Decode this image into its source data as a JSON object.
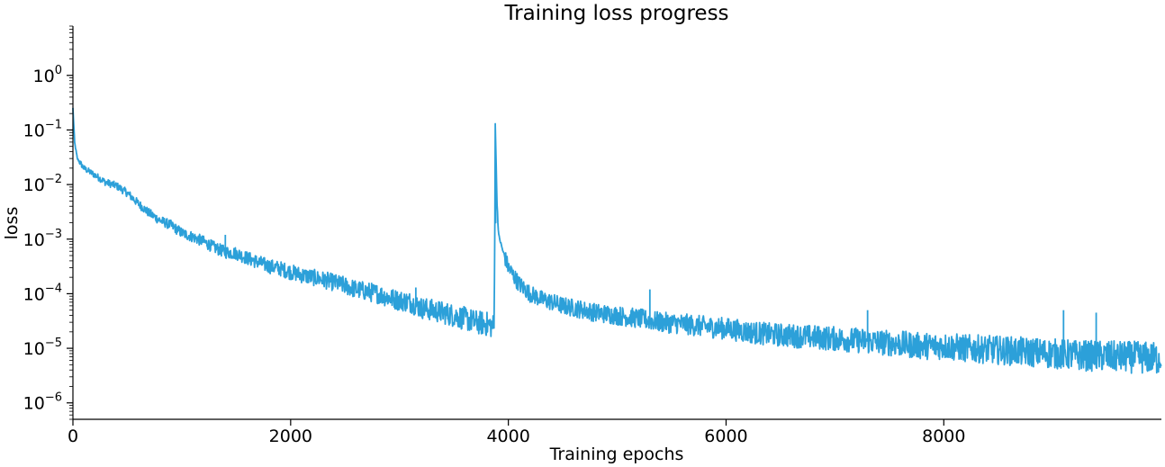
{
  "chart_data": {
    "type": "line",
    "title": "Training loss progress",
    "xlabel": "Training epochs",
    "ylabel": "loss",
    "xlim": [
      0,
      9999
    ],
    "ylim": [
      5e-07,
      8
    ],
    "yscale": "log",
    "grid": false,
    "legend": "none",
    "x_ticks": [
      {
        "value": 0,
        "label": "0"
      },
      {
        "value": 2000,
        "label": "2000"
      },
      {
        "value": 4000,
        "label": "4000"
      },
      {
        "value": 6000,
        "label": "6000"
      },
      {
        "value": 8000,
        "label": "8000"
      }
    ],
    "y_ticks": [
      {
        "value": 1.0,
        "base": "10",
        "exp": "0"
      },
      {
        "value": 0.1,
        "base": "10",
        "exp": "−1"
      },
      {
        "value": 0.01,
        "base": "10",
        "exp": "−2"
      },
      {
        "value": 0.001,
        "base": "10",
        "exp": "−3"
      },
      {
        "value": 0.0001,
        "base": "10",
        "exp": "−4"
      },
      {
        "value": 1e-05,
        "base": "10",
        "exp": "−5"
      },
      {
        "value": 1e-06,
        "base": "10",
        "exp": "−6"
      }
    ],
    "series": [
      {
        "color": "#2ca0d9",
        "points": [
          [
            0,
            0.25
          ],
          [
            15,
            0.06
          ],
          [
            40,
            0.03
          ],
          [
            100,
            0.02
          ],
          [
            200,
            0.015
          ],
          [
            300,
            0.011
          ],
          [
            400,
            0.0095
          ],
          [
            500,
            0.007
          ],
          [
            600,
            0.0045
          ],
          [
            700,
            0.003
          ],
          [
            800,
            0.0022
          ],
          [
            900,
            0.0018
          ],
          [
            1000,
            0.0013
          ],
          [
            1100,
            0.0011
          ],
          [
            1200,
            0.0009
          ],
          [
            1300,
            0.0007
          ],
          [
            1400,
            0.00058
          ],
          [
            1500,
            0.00055
          ],
          [
            1600,
            0.00045
          ],
          [
            1700,
            0.00038
          ],
          [
            1800,
            0.00032
          ],
          [
            1900,
            0.00029
          ],
          [
            2000,
            0.00025
          ],
          [
            2100,
            0.00022
          ],
          [
            2200,
            0.0002
          ],
          [
            2300,
            0.00018
          ],
          [
            2400,
            0.00016
          ],
          [
            2500,
            0.00014
          ],
          [
            2600,
            0.00012
          ],
          [
            2700,
            0.00011
          ],
          [
            2800,
            0.0001
          ],
          [
            2900,
            8.5e-05
          ],
          [
            3000,
            7.5e-05
          ],
          [
            3100,
            7e-05
          ],
          [
            3200,
            5.5e-05
          ],
          [
            3300,
            5e-05
          ],
          [
            3400,
            4.5e-05
          ],
          [
            3500,
            4e-05
          ],
          [
            3600,
            3.5e-05
          ],
          [
            3700,
            3e-05
          ],
          [
            3800,
            2.8e-05
          ],
          [
            3870,
            2.5e-05
          ],
          [
            3880,
            0.13
          ],
          [
            3895,
            0.005
          ],
          [
            3910,
            0.0012
          ],
          [
            3950,
            0.0006
          ],
          [
            4000,
            0.0003
          ],
          [
            4100,
            0.00015
          ],
          [
            4200,
            0.0001
          ],
          [
            4300,
            8e-05
          ],
          [
            4400,
            7e-05
          ],
          [
            4500,
            6e-05
          ],
          [
            4600,
            5.5e-05
          ],
          [
            4700,
            5e-05
          ],
          [
            4800,
            4.5e-05
          ],
          [
            5000,
            4e-05
          ],
          [
            5200,
            3.5e-05
          ],
          [
            5400,
            3e-05
          ],
          [
            5600,
            2.8e-05
          ],
          [
            5800,
            2.5e-05
          ],
          [
            6000,
            2.3e-05
          ],
          [
            6200,
            2e-05
          ],
          [
            6400,
            1.8e-05
          ],
          [
            6600,
            1.7e-05
          ],
          [
            6800,
            1.6e-05
          ],
          [
            7000,
            1.5e-05
          ],
          [
            7200,
            1.4e-05
          ],
          [
            7400,
            1.3e-05
          ],
          [
            7600,
            1.2e-05
          ],
          [
            7800,
            1.1e-05
          ],
          [
            8000,
            1.1e-05
          ],
          [
            8200,
            1e-05
          ],
          [
            8400,
            9.5e-06
          ],
          [
            8600,
            9e-06
          ],
          [
            8800,
            8.5e-06
          ],
          [
            9000,
            8e-06
          ],
          [
            9200,
            7.5e-06
          ],
          [
            9400,
            7.2e-06
          ],
          [
            9600,
            7e-06
          ],
          [
            9800,
            6.8e-06
          ],
          [
            9999,
            6.5e-06
          ]
        ],
        "spikes": [
          [
            1400,
            0.0012
          ],
          [
            3150,
            0.00013
          ],
          [
            3880,
            0.13
          ],
          [
            5300,
            0.00012
          ],
          [
            7300,
            5e-05
          ],
          [
            9100,
            5e-05
          ],
          [
            9400,
            4.5e-05
          ]
        ]
      }
    ]
  }
}
